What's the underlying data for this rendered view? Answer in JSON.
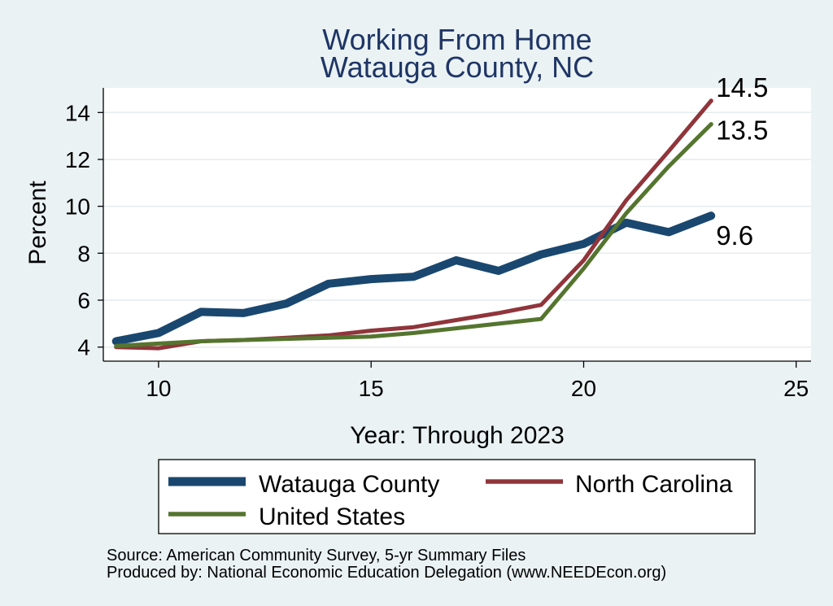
{
  "chart_data": {
    "type": "line",
    "title": "Working From Home",
    "subtitle": "Watauga County, NC",
    "xlabel": "Year: Through 2023",
    "ylabel": "Percent",
    "xlim": [
      8.7,
      25.35
    ],
    "ylim": [
      3.4,
      15.05
    ],
    "x_ticks": [
      10,
      15,
      20,
      25
    ],
    "y_ticks": [
      4,
      6,
      8,
      10,
      12,
      14
    ],
    "grid": {
      "x": false,
      "y": true
    },
    "legend_position": "bottom",
    "x": [
      9,
      10,
      11,
      12,
      13,
      14,
      15,
      16,
      17,
      18,
      19,
      20,
      21,
      22,
      23
    ],
    "series": [
      {
        "name": "Watauga County",
        "color": "#1a476f",
        "values": [
          4.25,
          4.6,
          5.5,
          5.45,
          5.85,
          6.7,
          6.9,
          7.0,
          7.7,
          7.25,
          7.95,
          8.4,
          9.3,
          8.9,
          9.6
        ],
        "end_label": "9.6"
      },
      {
        "name": "North Carolina",
        "color": "#90353b",
        "values": [
          4.0,
          3.95,
          4.25,
          4.3,
          4.4,
          4.5,
          4.7,
          4.85,
          5.15,
          5.45,
          5.8,
          7.7,
          10.25,
          12.35,
          14.5
        ],
        "end_label": "14.5"
      },
      {
        "name": "United States",
        "color": "#55752f",
        "values": [
          4.05,
          4.15,
          4.25,
          4.3,
          4.35,
          4.4,
          4.45,
          4.6,
          4.8,
          5.0,
          5.2,
          7.35,
          9.7,
          11.7,
          13.5
        ],
        "end_label": "13.5"
      }
    ]
  },
  "notes": {
    "source": "Source: American Community Survey, 5-yr Summary Files",
    "produced_by": "Produced by: National Economic Education Delegation (www.NEEDEcon.org)"
  },
  "colors": {
    "background": "#eaf2f3",
    "plot_background": "#ffffff",
    "title": "#1f3565",
    "gridline": "#e4ecee",
    "text": "#000000"
  }
}
